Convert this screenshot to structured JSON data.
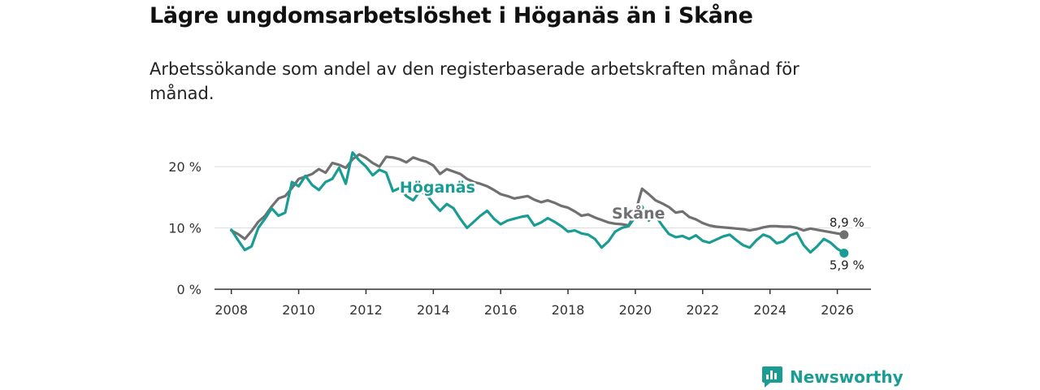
{
  "title": "Lägre ungdomsarbetslöshet i Höganäs än i Skåne",
  "subtitle": "Arbetssökande som andel av den registerbaserade arbetskraften månad för månad.",
  "brand": {
    "name": "Newsworthy"
  },
  "colors": {
    "hoganas": "#1a9c94",
    "skane": "#707073",
    "grid": "#dddddd",
    "axis": "#333333"
  },
  "chart_data": {
    "type": "line",
    "title": "Lägre ungdomsarbetslöshet i Höganäs än i Skåne",
    "xlabel": "",
    "ylabel": "",
    "xlim": [
      2007.5,
      2027.0
    ],
    "ylim": [
      0,
      22
    ],
    "x_ticks": [
      2008,
      2010,
      2012,
      2014,
      2016,
      2018,
      2020,
      2022,
      2024,
      2026
    ],
    "x_tick_labels": [
      "2008",
      "2010",
      "2012",
      "2014",
      "2016",
      "2018",
      "2020",
      "2022",
      "2024",
      "2026"
    ],
    "y_ticks": [
      0,
      10,
      20
    ],
    "y_tick_labels": [
      "0 %",
      "10 %",
      "20 %"
    ],
    "grid": true,
    "series": [
      {
        "name": "Skåne",
        "color": "#707073",
        "end_label": "8,9 %",
        "x": [
          2008.0,
          2008.2,
          2008.4,
          2008.6,
          2008.8,
          2009.0,
          2009.2,
          2009.4,
          2009.6,
          2009.8,
          2010.0,
          2010.2,
          2010.4,
          2010.6,
          2010.8,
          2011.0,
          2011.2,
          2011.4,
          2011.6,
          2011.8,
          2012.0,
          2012.2,
          2012.4,
          2012.6,
          2012.8,
          2013.0,
          2013.2,
          2013.4,
          2013.6,
          2013.8,
          2014.0,
          2014.2,
          2014.4,
          2014.6,
          2014.8,
          2015.0,
          2015.2,
          2015.4,
          2015.6,
          2015.8,
          2016.0,
          2016.2,
          2016.4,
          2016.6,
          2016.8,
          2017.0,
          2017.2,
          2017.4,
          2017.6,
          2017.8,
          2018.0,
          2018.2,
          2018.4,
          2018.6,
          2018.8,
          2019.0,
          2019.2,
          2019.4,
          2019.6,
          2019.8,
          2020.0,
          2020.2,
          2020.4,
          2020.6,
          2020.8,
          2021.0,
          2021.2,
          2021.4,
          2021.6,
          2021.8,
          2022.0,
          2022.2,
          2022.4,
          2022.6,
          2022.8,
          2023.0,
          2023.2,
          2023.4,
          2023.6,
          2023.8,
          2024.0,
          2024.2,
          2024.4,
          2024.6,
          2024.8,
          2025.0,
          2025.2,
          2025.4,
          2025.6,
          2025.8,
          2026.0,
          2026.2
        ],
        "values": [
          9.6,
          9.0,
          8.2,
          9.5,
          11.0,
          12.0,
          13.5,
          14.8,
          15.2,
          16.5,
          18.0,
          18.4,
          18.8,
          19.6,
          19.0,
          20.6,
          20.3,
          19.8,
          21.2,
          22.0,
          21.4,
          20.6,
          20.0,
          21.6,
          21.5,
          21.2,
          20.7,
          21.5,
          21.1,
          20.8,
          20.2,
          18.8,
          19.6,
          19.2,
          18.8,
          18.0,
          17.5,
          17.2,
          16.8,
          16.2,
          15.5,
          15.2,
          14.8,
          15.0,
          15.2,
          14.6,
          14.2,
          14.5,
          14.1,
          13.6,
          13.3,
          12.7,
          12.0,
          12.2,
          11.7,
          11.3,
          10.9,
          10.7,
          10.6,
          10.4,
          12.5,
          16.4,
          15.5,
          14.5,
          14.0,
          13.4,
          12.5,
          12.7,
          11.8,
          11.4,
          10.8,
          10.4,
          10.2,
          10.1,
          10.0,
          9.9,
          9.8,
          9.6,
          9.8,
          10.1,
          10.3,
          10.3,
          10.2,
          10.2,
          10.0,
          9.6,
          9.9,
          9.7,
          9.5,
          9.3,
          9.1,
          8.9
        ]
      },
      {
        "name": "Höganäs",
        "color": "#1a9c94",
        "end_label": "5,9 %",
        "x": [
          2008.0,
          2008.2,
          2008.4,
          2008.6,
          2008.8,
          2009.0,
          2009.2,
          2009.4,
          2009.6,
          2009.8,
          2010.0,
          2010.2,
          2010.4,
          2010.6,
          2010.8,
          2011.0,
          2011.2,
          2011.4,
          2011.6,
          2011.8,
          2012.0,
          2012.2,
          2012.4,
          2012.6,
          2012.8,
          2013.0,
          2013.2,
          2013.4,
          2013.6,
          2013.8,
          2014.0,
          2014.2,
          2014.4,
          2014.6,
          2014.8,
          2015.0,
          2015.2,
          2015.4,
          2015.6,
          2015.8,
          2016.0,
          2016.2,
          2016.4,
          2016.6,
          2016.8,
          2017.0,
          2017.2,
          2017.4,
          2017.6,
          2017.8,
          2018.0,
          2018.2,
          2018.4,
          2018.6,
          2018.8,
          2019.0,
          2019.2,
          2019.4,
          2019.6,
          2019.8,
          2020.0,
          2020.2,
          2020.4,
          2020.6,
          2020.8,
          2021.0,
          2021.2,
          2021.4,
          2021.6,
          2021.8,
          2022.0,
          2022.2,
          2022.4,
          2022.6,
          2022.8,
          2023.0,
          2023.2,
          2023.4,
          2023.6,
          2023.8,
          2024.0,
          2024.2,
          2024.4,
          2024.6,
          2024.8,
          2025.0,
          2025.2,
          2025.4,
          2025.6,
          2025.8,
          2026.0,
          2026.2
        ],
        "values": [
          9.7,
          8.0,
          6.4,
          7.0,
          10.0,
          11.5,
          13.2,
          12.0,
          12.5,
          17.5,
          16.8,
          18.5,
          17.0,
          16.2,
          17.5,
          18.0,
          19.8,
          17.2,
          22.3,
          21.0,
          20.0,
          18.6,
          19.5,
          19.0,
          16.0,
          16.5,
          15.2,
          14.5,
          16.0,
          15.4,
          14.0,
          12.8,
          13.9,
          13.2,
          11.5,
          10.0,
          11.0,
          12.0,
          12.8,
          11.5,
          10.6,
          11.2,
          11.5,
          11.8,
          12.0,
          10.4,
          10.9,
          11.6,
          11.0,
          10.3,
          9.4,
          9.6,
          9.1,
          8.9,
          8.2,
          6.8,
          7.8,
          9.4,
          10.0,
          10.3,
          11.8,
          13.5,
          11.2,
          12.0,
          10.4,
          9.0,
          8.5,
          8.7,
          8.2,
          8.8,
          7.9,
          7.6,
          8.1,
          8.6,
          8.9,
          8.0,
          7.2,
          6.8,
          8.0,
          8.9,
          8.5,
          7.5,
          7.8,
          8.8,
          9.2,
          7.2,
          6.0,
          7.0,
          8.2,
          7.6,
          6.6,
          5.9
        ]
      }
    ]
  }
}
